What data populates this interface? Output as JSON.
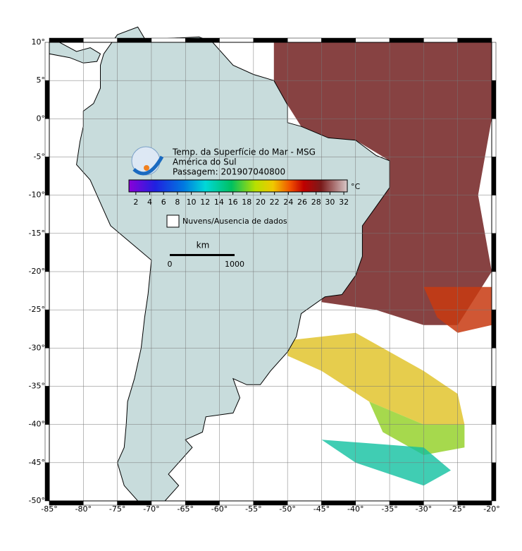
{
  "header": {
    "lines": [
      "Temp. da Superfície do Mar - MSG",
      "América do Sul",
      "Passagem: 201907040800"
    ]
  },
  "map": {
    "xlim": [
      -85,
      -20
    ],
    "ylim": [
      -50,
      10
    ],
    "xticks": [
      {
        "value": -85,
        "label": "-85°"
      },
      {
        "value": -80,
        "label": "-80°"
      },
      {
        "value": -75,
        "label": "-75°"
      },
      {
        "value": -70,
        "label": "-70°"
      },
      {
        "value": -65,
        "label": "-65°"
      },
      {
        "value": -60,
        "label": "-60°"
      },
      {
        "value": -55,
        "label": "-55°"
      },
      {
        "value": -50,
        "label": "-50°"
      },
      {
        "value": -45,
        "label": "-45°"
      },
      {
        "value": -40,
        "label": "-40°"
      },
      {
        "value": -35,
        "label": "-35°"
      },
      {
        "value": -30,
        "label": "-30°"
      },
      {
        "value": -25,
        "label": "-25°"
      },
      {
        "value": -20,
        "label": "-20°"
      }
    ],
    "yticks": [
      {
        "value": 10,
        "label": "10°"
      },
      {
        "value": 5,
        "label": "5°"
      },
      {
        "value": 0,
        "label": "0°"
      },
      {
        "value": -5,
        "label": "-5°"
      },
      {
        "value": -10,
        "label": "-10°"
      },
      {
        "value": -15,
        "label": "-15°"
      },
      {
        "value": -20,
        "label": "-20°"
      },
      {
        "value": -25,
        "label": "-25°"
      },
      {
        "value": -30,
        "label": "-30°"
      },
      {
        "value": -35,
        "label": "-35°"
      },
      {
        "value": -40,
        "label": "-40°"
      },
      {
        "value": -45,
        "label": "-45°"
      },
      {
        "value": -50,
        "label": "-50°"
      }
    ],
    "grid": true
  },
  "colorbar": {
    "range": [
      1,
      32.5
    ],
    "ticks": [
      2,
      4,
      6,
      8,
      10,
      12,
      14,
      16,
      18,
      20,
      22,
      24,
      26,
      28,
      30,
      32
    ],
    "unit": "°C"
  },
  "legend": {
    "label": "Nuvens/Ausencia de dados"
  },
  "scale_bar": {
    "unit": "km",
    "labels": [
      "0",
      "1000"
    ]
  }
}
